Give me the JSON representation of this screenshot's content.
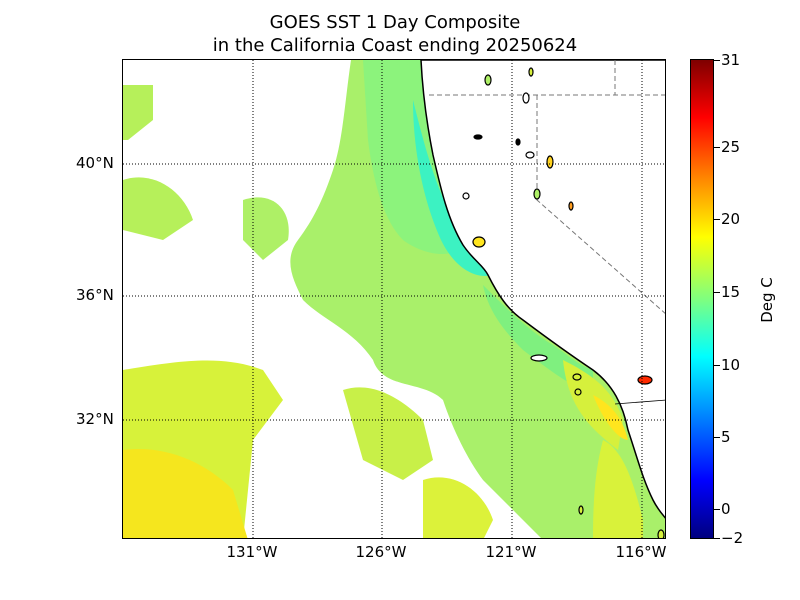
{
  "title": {
    "line1": "GOES SST 1 Day Composite",
    "line2": "in the California Coast ending 20250624"
  },
  "map": {
    "lat_labels": [
      "40°N",
      "36°N",
      "32°N"
    ],
    "lon_labels": [
      "131°W",
      "126°W",
      "121°W",
      "116°W"
    ],
    "land_color": "#ffffff",
    "coast_color": "#000000",
    "grid_style": "dotted"
  },
  "colorbar": {
    "label": "Deg C",
    "ticks": [
      "31",
      "25",
      "20",
      "15",
      "10",
      "5",
      "0",
      "−2"
    ],
    "colormap": "jet",
    "range": [
      -2,
      31
    ]
  }
}
